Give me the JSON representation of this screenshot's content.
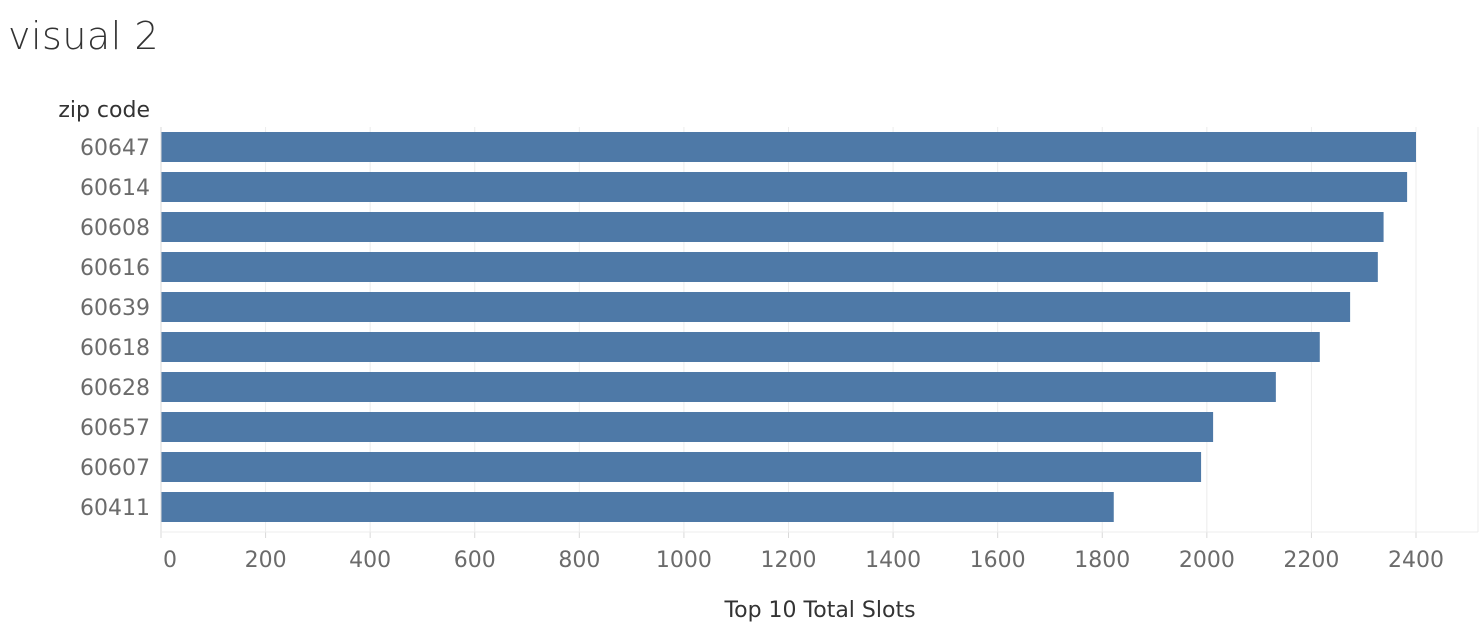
{
  "title": "visual 2",
  "colors": {
    "bar": "#4e79a7",
    "grid": "#ececec",
    "axis": "#d9d9d9"
  },
  "chart_data": {
    "type": "bar",
    "orientation": "horizontal",
    "title": "",
    "category_header": "zip code",
    "xlabel": "Top 10 Total Slots",
    "ylabel": "zip code",
    "categories": [
      "60647",
      "60614",
      "60608",
      "60616",
      "60639",
      "60618",
      "60628",
      "60657",
      "60607",
      "60411"
    ],
    "values": [
      2400,
      2383,
      2338,
      2327,
      2274,
      2216,
      2132,
      2012,
      1989,
      1822
    ],
    "xlim": [
      0,
      2400
    ],
    "xticks": [
      0,
      200,
      400,
      600,
      800,
      1000,
      1200,
      1400,
      1600,
      1800,
      2000,
      2200,
      2400
    ],
    "xtick_labels": [
      "0",
      "200",
      "400",
      "600",
      "800",
      "1000",
      "1200",
      "1400",
      "1600",
      "1800",
      "2000",
      "2200",
      "2400"
    ],
    "grid": true,
    "legend": "none"
  }
}
